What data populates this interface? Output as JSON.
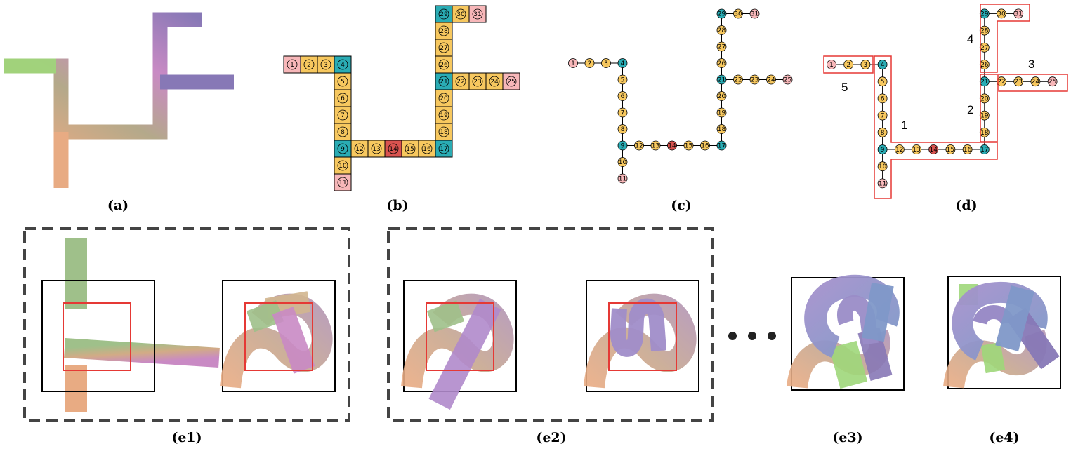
{
  "panels": {
    "a": {
      "caption": "(a)"
    },
    "b": {
      "caption": "(b)"
    },
    "c": {
      "caption": "(c)"
    },
    "d": {
      "caption": "(d)",
      "segment_labels": [
        "1",
        "2",
        "3",
        "4",
        "5"
      ]
    },
    "e1": {
      "caption": "(e1)"
    },
    "e2": {
      "caption": "(e2)"
    },
    "e3": {
      "caption": "(e3)"
    },
    "e4": {
      "caption": "(e4)"
    }
  },
  "nodes": {
    "count": 31,
    "labels": [
      "1",
      "2",
      "3",
      "4",
      "5",
      "6",
      "7",
      "8",
      "9",
      "10",
      "11",
      "12",
      "13",
      "14",
      "15",
      "16",
      "17",
      "18",
      "19",
      "20",
      "21",
      "22",
      "23",
      "24",
      "25",
      "26",
      "27",
      "28",
      "29",
      "30",
      "31"
    ],
    "endpoint_nodes": [
      "1",
      "11",
      "25",
      "31"
    ],
    "junction_nodes": [
      "4",
      "9",
      "17",
      "21",
      "29"
    ],
    "special_nodes": [
      "14"
    ],
    "edges": [
      [
        "1",
        "2"
      ],
      [
        "2",
        "3"
      ],
      [
        "3",
        "4"
      ],
      [
        "4",
        "5"
      ],
      [
        "5",
        "6"
      ],
      [
        "6",
        "7"
      ],
      [
        "7",
        "8"
      ],
      [
        "8",
        "9"
      ],
      [
        "9",
        "10"
      ],
      [
        "10",
        "11"
      ],
      [
        "9",
        "12"
      ],
      [
        "12",
        "13"
      ],
      [
        "13",
        "14"
      ],
      [
        "14",
        "15"
      ],
      [
        "15",
        "16"
      ],
      [
        "16",
        "17"
      ],
      [
        "17",
        "18"
      ],
      [
        "18",
        "19"
      ],
      [
        "19",
        "20"
      ],
      [
        "20",
        "21"
      ],
      [
        "21",
        "22"
      ],
      [
        "22",
        "23"
      ],
      [
        "23",
        "24"
      ],
      [
        "24",
        "25"
      ],
      [
        "21",
        "26"
      ],
      [
        "26",
        "27"
      ],
      [
        "27",
        "28"
      ],
      [
        "28",
        "29"
      ],
      [
        "29",
        "30"
      ],
      [
        "30",
        "31"
      ]
    ]
  },
  "colors": {
    "endpoint": "#f7b7b9",
    "regular": "#f7c85f",
    "junction": "#2aacb4",
    "special": "#d9534f",
    "highlight_box": "#e53935",
    "frame": "#000000",
    "dashed_frame": "#444444",
    "tube_green": "#9fd77a",
    "tube_orange": "#e8ab83",
    "tube_pink": "#c98ac4",
    "tube_purple": "#8778b6",
    "tube_blue": "#7f98c8"
  },
  "ellipsis": "• • •"
}
